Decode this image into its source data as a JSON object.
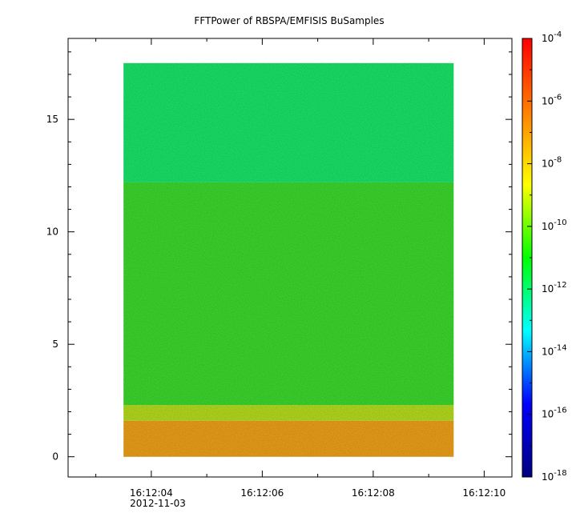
{
  "chart_data": {
    "type": "heatmap",
    "title": "FFTPower of RBSPA/EMFISIS  BuSamples",
    "xlabel": "",
    "ylabel": "",
    "x_ticks": [
      "16:12:04",
      "16:12:06",
      "16:12:08",
      "16:12:10"
    ],
    "x_date_label": "2012-11-03",
    "x_range_seconds": [
      2.5,
      10.5
    ],
    "x_data_range_seconds": [
      3.5,
      9.45
    ],
    "y_ticks": [
      0,
      5,
      10,
      15
    ],
    "ylim": [
      -0.9,
      18.6
    ],
    "y_data_range": [
      0,
      17.5
    ],
    "colorbar": {
      "scale": "log",
      "range": [
        1e-18,
        0.0001
      ],
      "tick_exponents": [
        -18,
        -16,
        -14,
        -12,
        -10,
        -8,
        -6,
        -4
      ],
      "tick_base": "10",
      "colormap": [
        "#00007f",
        "#0000ff",
        "#00ffff",
        "#00ff00",
        "#ffff00",
        "#ff7f00",
        "#ff0000"
      ]
    },
    "bands": [
      {
        "y_from": 0.0,
        "y_to": 1.6,
        "log10_power": -6.6,
        "color": "#f2a31a"
      },
      {
        "y_from": 1.6,
        "y_to": 2.3,
        "log10_power": -9.0,
        "color": "#b8e01e"
      },
      {
        "y_from": 2.3,
        "y_to": 12.2,
        "log10_power": -10.3,
        "color": "#3ddc2e"
      },
      {
        "y_from": 12.2,
        "y_to": 17.5,
        "log10_power": -11.6,
        "color": "#19e86a"
      }
    ]
  }
}
